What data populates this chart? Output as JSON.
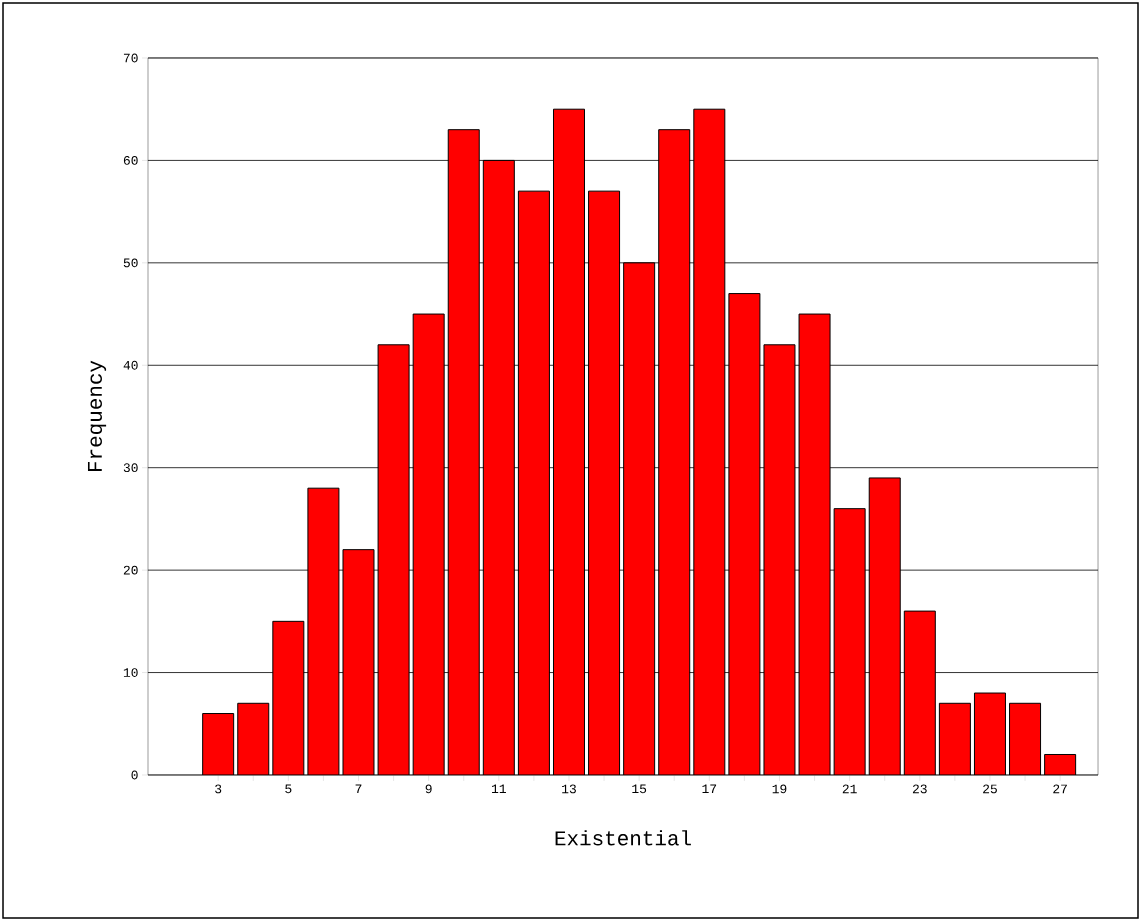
{
  "chart_data": {
    "type": "bar",
    "xlabel": "Existential",
    "ylabel": "Frequency",
    "categories": [
      "3",
      null,
      "5",
      null,
      "7",
      null,
      "9",
      null,
      "11",
      null,
      "13",
      null,
      "15",
      null,
      "17",
      null,
      "19",
      null,
      "21",
      null,
      "23",
      null,
      "25",
      null,
      "27"
    ],
    "values": [
      6,
      7,
      15,
      28,
      22,
      42,
      45,
      63,
      60,
      57,
      65,
      57,
      50,
      63,
      65,
      47,
      42,
      45,
      26,
      29,
      16,
      7,
      8,
      7,
      2
    ],
    "color": "#ff0000",
    "ylim": [
      0,
      70
    ],
    "yticks": [
      0,
      10,
      20,
      30,
      40,
      50,
      60,
      70
    ],
    "grid": "y"
  }
}
